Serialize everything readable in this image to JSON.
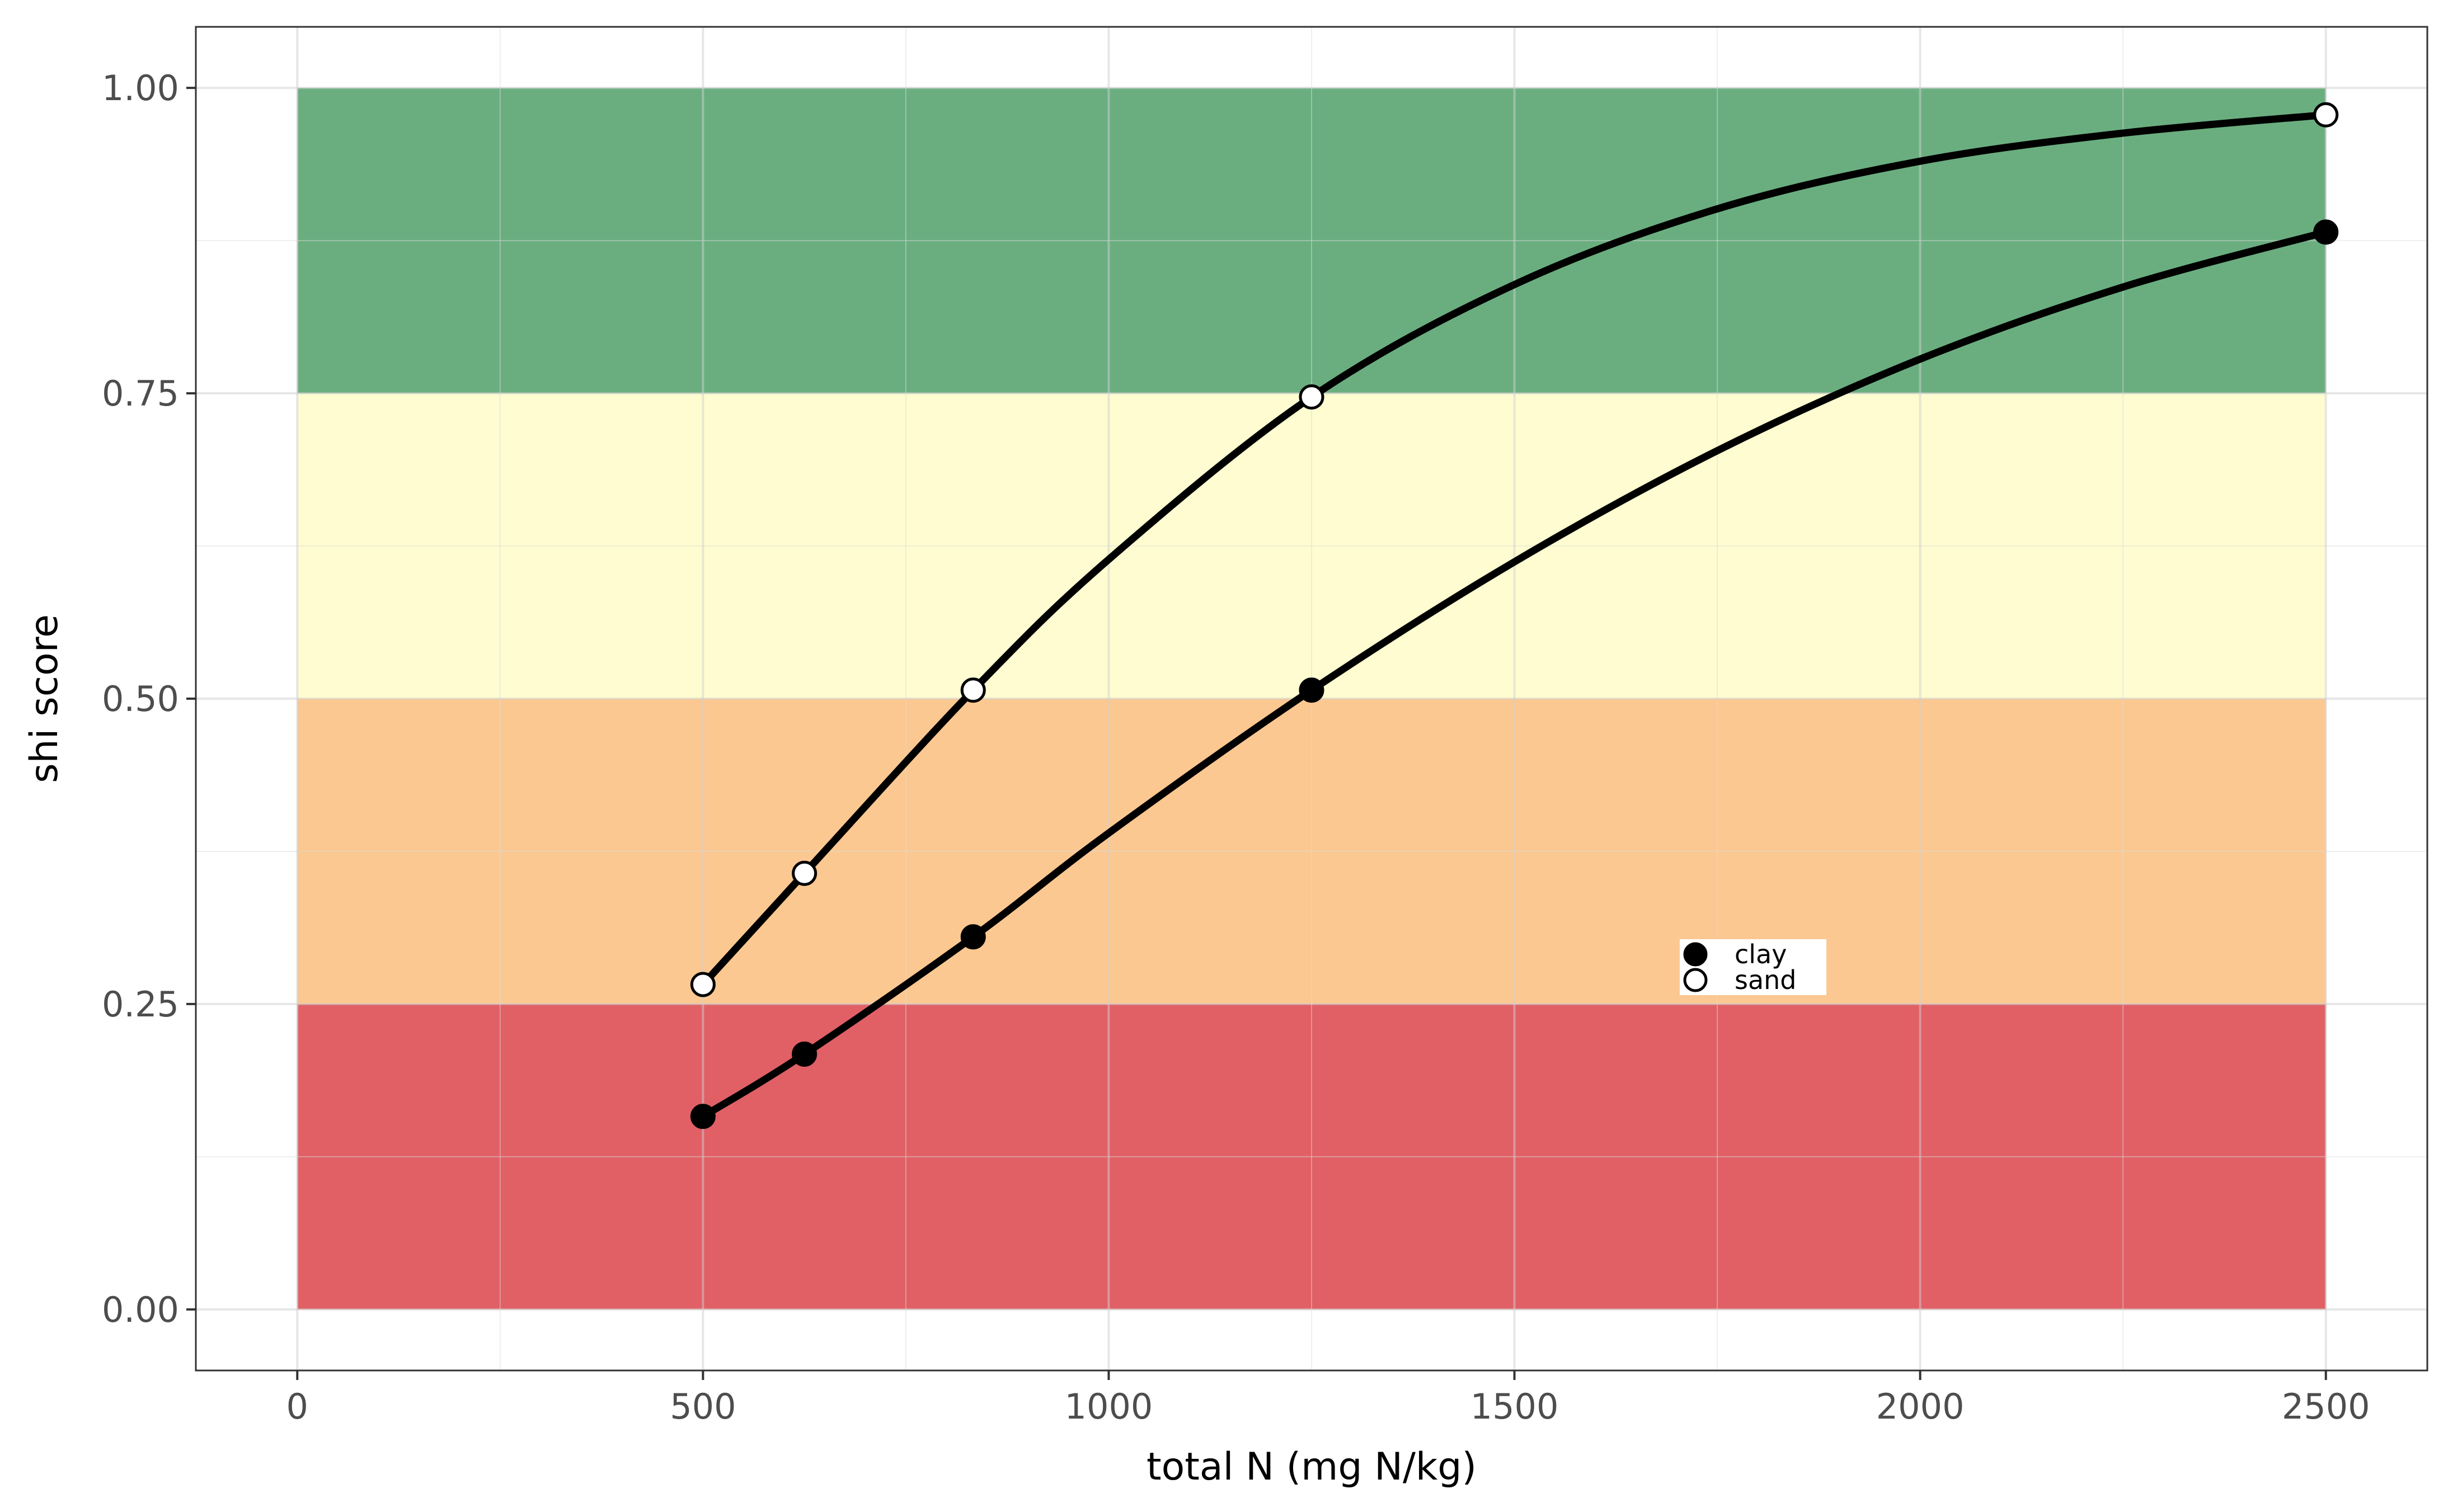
{
  "chart_data": {
    "type": "line",
    "xlabel": "total N (mg N/kg)",
    "ylabel": "shi score",
    "xlim": [
      -125,
      2625
    ],
    "ylim": [
      -0.05,
      1.05
    ],
    "x_ticks": [
      0,
      500,
      1000,
      1500,
      2000,
      2500
    ],
    "x_tick_labels": [
      "0",
      "500",
      "1000",
      "1500",
      "2000",
      "2500"
    ],
    "x_minor_ticks": [
      250,
      750,
      1250,
      1750,
      2250
    ],
    "y_ticks": [
      0,
      0.25,
      0.5,
      0.75,
      1.0
    ],
    "y_tick_labels": [
      "0.00",
      "0.25",
      "0.50",
      "0.75",
      "1.00"
    ],
    "y_minor_ticks": [
      0.125,
      0.375,
      0.625,
      0.875
    ],
    "grid": true,
    "bands": [
      {
        "ymin": 0.0,
        "ymax": 0.25,
        "xmin": 0,
        "xmax": 2500,
        "color": "#e06066"
      },
      {
        "ymin": 0.25,
        "ymax": 0.5,
        "xmin": 0,
        "xmax": 2500,
        "color": "#fcc891"
      },
      {
        "ymin": 0.5,
        "ymax": 0.75,
        "xmin": 0,
        "xmax": 2500,
        "color": "#fefcd0"
      },
      {
        "ymin": 0.75,
        "ymax": 1.0,
        "xmin": 0,
        "xmax": 2500,
        "color": "#6aae80"
      }
    ],
    "series": [
      {
        "name": "clay",
        "marker": "filled",
        "points": [
          [
            500,
            0.158
          ],
          [
            625,
            0.209
          ],
          [
            833,
            0.305
          ],
          [
            1250,
            0.507
          ],
          [
            2500,
            0.882
          ]
        ],
        "curve": [
          [
            500,
            0.158
          ],
          [
            625,
            0.209
          ],
          [
            833,
            0.305
          ],
          [
            1000,
            0.39
          ],
          [
            1250,
            0.507
          ],
          [
            1500,
            0.612
          ],
          [
            1750,
            0.703
          ],
          [
            2000,
            0.778
          ],
          [
            2250,
            0.837
          ],
          [
            2500,
            0.882
          ]
        ]
      },
      {
        "name": "sand",
        "marker": "open",
        "points": [
          [
            500,
            0.266
          ],
          [
            625,
            0.357
          ],
          [
            833,
            0.507
          ],
          [
            1250,
            0.747
          ],
          [
            2500,
            0.978
          ]
        ],
        "curve": [
          [
            500,
            0.266
          ],
          [
            625,
            0.357
          ],
          [
            833,
            0.507
          ],
          [
            1000,
            0.614
          ],
          [
            1250,
            0.747
          ],
          [
            1500,
            0.839
          ],
          [
            1750,
            0.901
          ],
          [
            2000,
            0.94
          ],
          [
            2250,
            0.963
          ],
          [
            2500,
            0.978
          ]
        ]
      }
    ],
    "legend": {
      "position": "inside-center-right",
      "entries": [
        {
          "label": "clay",
          "marker": "filled"
        },
        {
          "label": "sand",
          "marker": "open"
        }
      ]
    }
  }
}
